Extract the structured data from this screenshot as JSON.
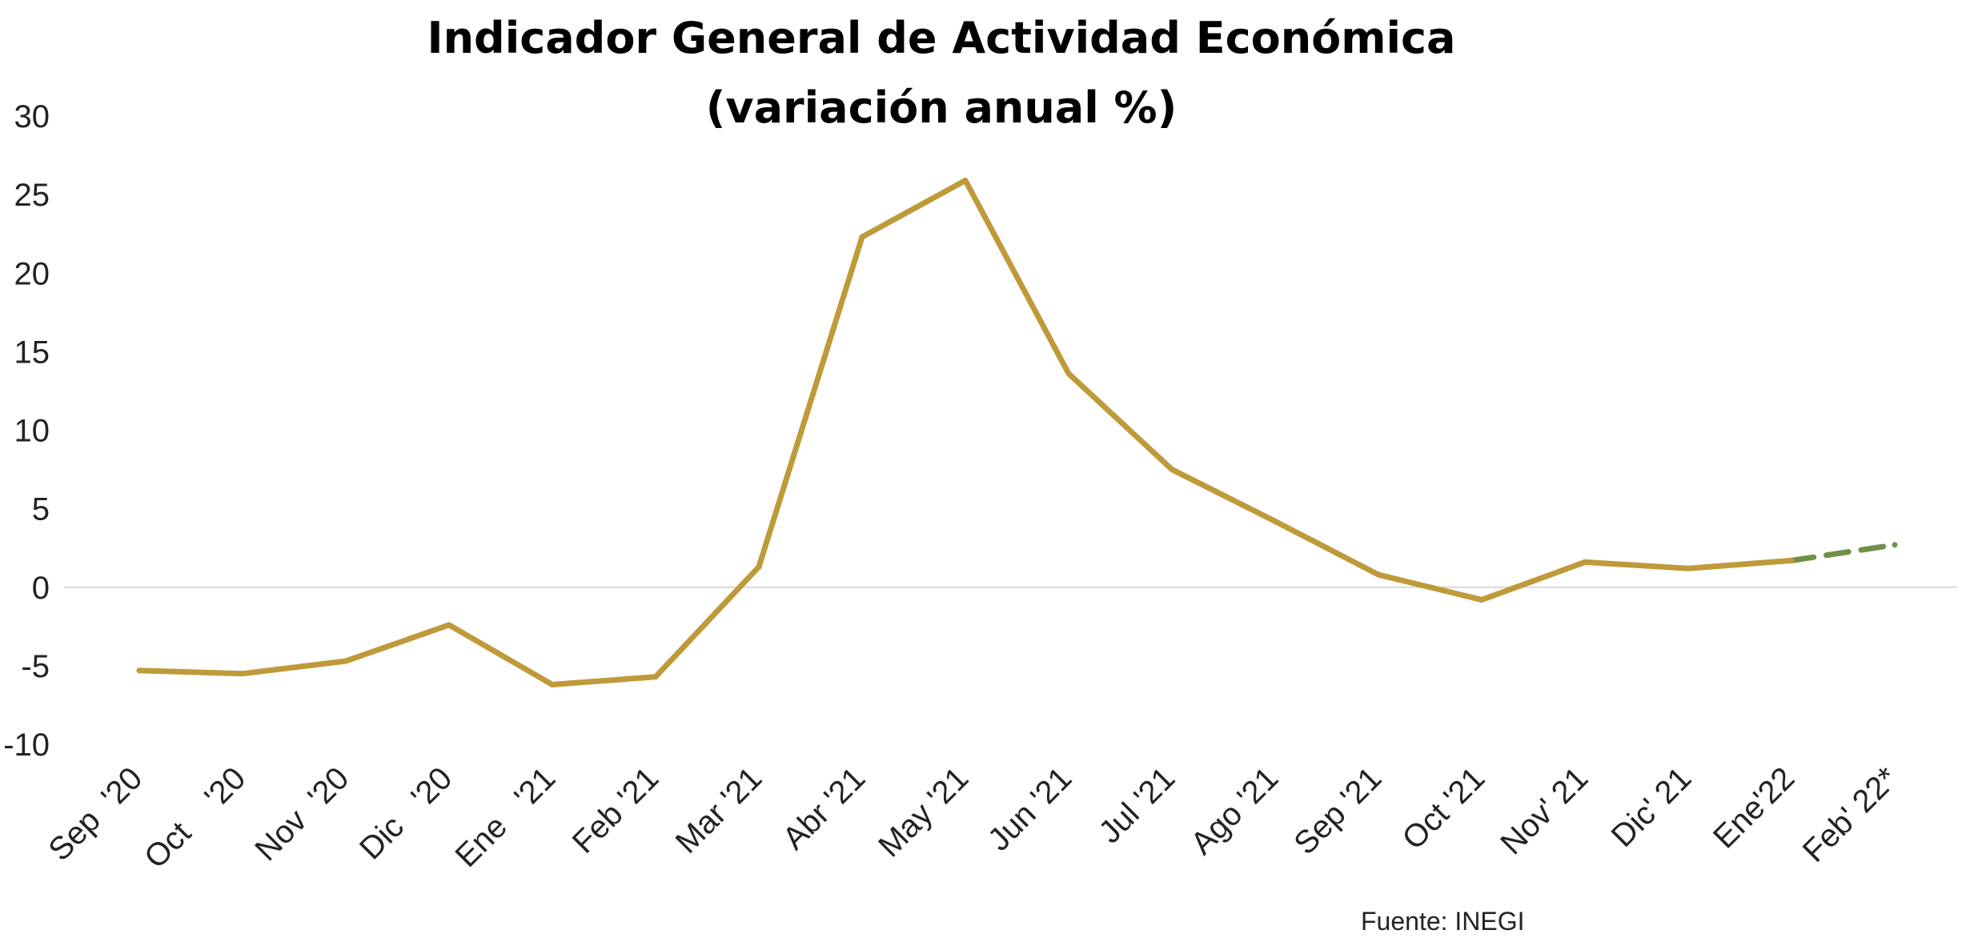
{
  "chart_data": {
    "type": "line",
    "title": "Indicador General de Actividad Económica",
    "subtitle": "(variación anual %)",
    "source": "Fuente: INEGI",
    "categories": [
      "Sep  '20",
      "Oct    '20",
      "Nov  '20",
      "Dic   '20",
      "Ene   '21",
      "Feb '21",
      "Mar '21",
      "Abr '21",
      "May '21",
      "Jun '21",
      "Jul '21",
      "Ago '21",
      "Sep '21",
      "Oct '21",
      "Nov' 21",
      "Dic' 21",
      "Ene'22",
      "Feb' 22*"
    ],
    "series": [
      {
        "values": [
          -5.3,
          -5.5,
          -4.7,
          -2.4,
          -6.2,
          -5.7,
          1.3,
          22.3,
          25.9,
          13.6,
          7.5,
          4.2,
          0.8,
          -0.8,
          1.6,
          1.2,
          1.7,
          2.7
        ],
        "color": "#BF9A3A",
        "dashed_from_index": 16,
        "dashed_color": "#70904A"
      }
    ],
    "ylim": [
      -10,
      30
    ],
    "yticks": [
      -10,
      -5,
      0,
      5,
      10,
      15,
      20,
      25,
      30
    ],
    "zero_line": true,
    "grid": false,
    "legend": "none"
  }
}
